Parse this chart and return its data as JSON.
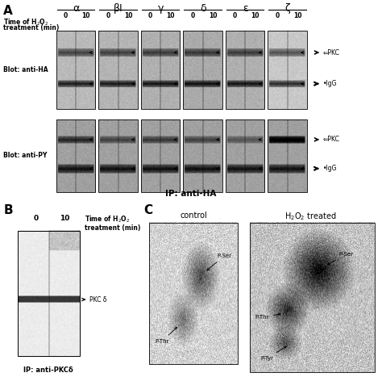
{
  "panel_A_label": "A",
  "panel_B_label": "B",
  "panel_C_label": "C",
  "greek_labels": [
    "α",
    "βI",
    "γ",
    "δ",
    "ε",
    "ζ"
  ],
  "time_label_line1": "Time of H₂O₂",
  "time_label_line2": "treatment (min)",
  "time_points": [
    "0",
    "10"
  ],
  "blot1_label": "Blot: anti-HA",
  "blot2_label": "Blot: anti-PY",
  "ip_label": "IP: anti-HA",
  "ip_b_label": "IP: anti-PKCδ",
  "PKC_label": "⇐PKC",
  "IgG_label": "●IgG",
  "PKC_delta_label": "⇐PKC δ",
  "control_label": "control",
  "h2o2_treated_label": "H₂O₂ treated",
  "PSer_label": "P-Ser",
  "PThr_label": "P-Thr",
  "PTyr_label": "P-Tyr",
  "bg_color": "#ffffff"
}
